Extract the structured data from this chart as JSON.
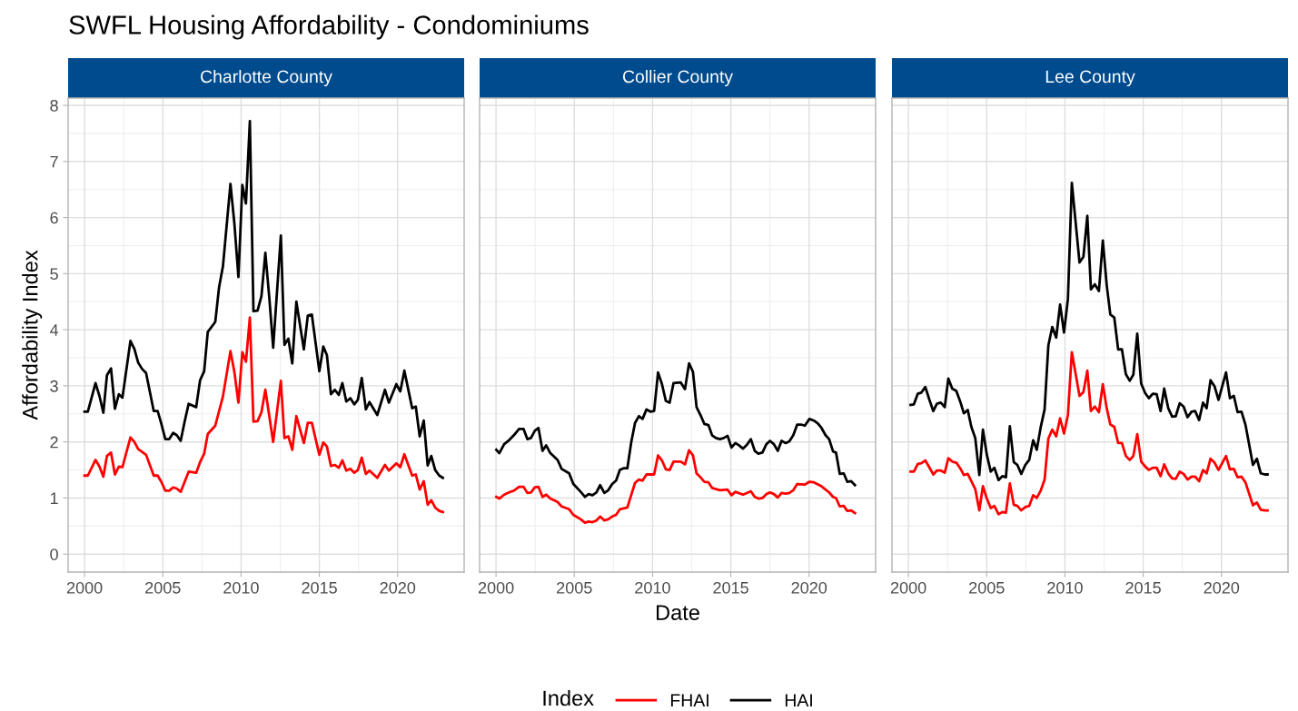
{
  "chart_data": [
    {
      "type": "line",
      "title": "SWFL Housing Affordability - Condominiums",
      "subtitle": "Charlotte County",
      "ylabel": "Affordability Index",
      "xlim": [
        1998.95,
        2024.25
      ],
      "ylim": [
        -0.32,
        8.13
      ],
      "xticks": [
        2000,
        2005,
        2010,
        2015,
        2020
      ],
      "yticks": [
        0,
        1,
        2,
        3,
        4,
        5,
        6,
        7,
        8
      ],
      "grid": true,
      "series": [
        {
          "color": "#ff0000",
          "x": [
            2000.0,
            2000.21,
            2000.7,
            2000.95,
            2001.2,
            2001.43,
            2001.69,
            2001.94,
            2002.19,
            2002.42,
            2002.93,
            2003.18,
            2003.43,
            2003.93,
            2004.42,
            2004.67,
            2004.9,
            2005.16,
            2005.41,
            2005.66,
            2005.89,
            2006.14,
            2006.65,
            2007.13,
            2007.38,
            2007.64,
            2007.87,
            2008.35,
            2008.84,
            2009.32,
            2009.57,
            2009.83,
            2010.08,
            2010.31,
            2010.56,
            2010.79,
            2011.05,
            2011.3,
            2011.55,
            2012.05,
            2012.54,
            2012.77,
            2013.02,
            2013.27,
            2013.53,
            2014.01,
            2014.26,
            2014.52,
            2015.0,
            2015.25,
            2015.48,
            2015.74,
            2015.99,
            2016.24,
            2016.47,
            2016.72,
            2016.98,
            2017.23,
            2017.46,
            2017.71,
            2017.97,
            2018.2,
            2018.7,
            2019.19,
            2019.44,
            2019.92,
            2020.17,
            2020.43,
            2020.93,
            2021.16,
            2021.41,
            2021.67,
            2021.92,
            2022.15,
            2022.4,
            2022.66,
            2022.89
          ],
          "values": [
            1.4,
            1.4,
            1.68,
            1.56,
            1.38,
            1.75,
            1.81,
            1.42,
            1.56,
            1.55,
            2.08,
            2.0,
            1.87,
            1.77,
            1.4,
            1.4,
            1.29,
            1.13,
            1.13,
            1.19,
            1.17,
            1.11,
            1.47,
            1.45,
            1.64,
            1.79,
            2.14,
            2.29,
            2.81,
            3.62,
            3.25,
            2.7,
            3.6,
            3.43,
            4.22,
            2.36,
            2.37,
            2.53,
            2.93,
            2.0,
            3.09,
            2.07,
            2.1,
            1.86,
            2.46,
            1.98,
            2.34,
            2.34,
            1.77,
            1.99,
            1.92,
            1.57,
            1.59,
            1.54,
            1.67,
            1.49,
            1.52,
            1.45,
            1.5,
            1.72,
            1.43,
            1.49,
            1.36,
            1.59,
            1.49,
            1.62,
            1.55,
            1.78,
            1.4,
            1.42,
            1.15,
            1.3,
            0.88,
            0.96,
            0.83,
            0.77,
            0.75
          ]
        },
        {
          "color": "#000000",
          "x": [
            2000.0,
            2000.21,
            2000.7,
            2000.95,
            2001.2,
            2001.43,
            2001.69,
            2001.94,
            2002.19,
            2002.42,
            2002.93,
            2003.18,
            2003.43,
            2003.68,
            2003.93,
            2004.19,
            2004.42,
            2004.67,
            2004.9,
            2005.16,
            2005.41,
            2005.66,
            2005.89,
            2006.14,
            2006.4,
            2006.65,
            2007.13,
            2007.38,
            2007.64,
            2007.87,
            2008.35,
            2008.59,
            2008.84,
            2009.32,
            2009.57,
            2009.83,
            2010.08,
            2010.31,
            2010.56,
            2010.79,
            2011.05,
            2011.3,
            2011.55,
            2011.8,
            2012.05,
            2012.54,
            2012.77,
            2013.02,
            2013.27,
            2013.53,
            2014.01,
            2014.26,
            2014.52,
            2015.0,
            2015.25,
            2015.48,
            2015.74,
            2015.99,
            2016.24,
            2016.47,
            2016.72,
            2016.98,
            2017.23,
            2017.46,
            2017.71,
            2017.97,
            2018.2,
            2018.7,
            2019.19,
            2019.44,
            2019.92,
            2020.17,
            2020.43,
            2020.93,
            2021.16,
            2021.41,
            2021.67,
            2021.92,
            2022.15,
            2022.4,
            2022.66,
            2022.89
          ],
          "values": [
            2.54,
            2.54,
            3.05,
            2.82,
            2.52,
            3.19,
            3.31,
            2.59,
            2.85,
            2.79,
            3.8,
            3.66,
            3.41,
            3.3,
            3.23,
            2.87,
            2.55,
            2.55,
            2.33,
            2.05,
            2.05,
            2.16,
            2.12,
            2.02,
            2.37,
            2.68,
            2.62,
            3.1,
            3.26,
            3.96,
            4.14,
            4.75,
            5.13,
            6.6,
            5.9,
            4.94,
            6.58,
            6.25,
            7.72,
            4.33,
            4.34,
            4.6,
            5.37,
            4.58,
            3.68,
            5.68,
            3.73,
            3.84,
            3.4,
            4.5,
            3.65,
            4.25,
            4.27,
            3.26,
            3.7,
            3.55,
            2.85,
            2.93,
            2.84,
            3.05,
            2.72,
            2.78,
            2.67,
            2.75,
            3.14,
            2.58,
            2.71,
            2.48,
            2.93,
            2.7,
            3.03,
            2.9,
            3.27,
            2.6,
            2.63,
            2.1,
            2.38,
            1.58,
            1.75,
            1.5,
            1.4,
            1.36
          ]
        }
      ]
    },
    {
      "type": "line",
      "subtitle": "Collier County",
      "xlabel": "Date",
      "legend_title": "Index",
      "legend": "bottom",
      "tick_labels": "x",
      "xlim": [
        1998.95,
        2024.25
      ],
      "ylim": [
        -0.32,
        8.13
      ],
      "xticks": [
        2000,
        2005,
        2010,
        2015,
        2020
      ],
      "yticks": [
        0,
        1,
        2,
        3,
        4,
        5,
        6,
        7,
        8
      ],
      "grid": true,
      "series": [
        {
          "name": "FHAI",
          "color": "#ff0000",
          "x": [
            2000.02,
            2000.21,
            2000.52,
            2000.83,
            2001.14,
            2001.47,
            2001.76,
            2002.0,
            2002.23,
            2002.48,
            2002.71,
            2002.97,
            2003.2,
            2003.47,
            2003.93,
            2004.19,
            2004.67,
            2004.94,
            2005.41,
            2005.68,
            2005.91,
            2006.16,
            2006.41,
            2006.65,
            2006.92,
            2007.17,
            2007.42,
            2007.67,
            2007.91,
            2008.39,
            2008.88,
            2009.13,
            2009.36,
            2009.61,
            2010.1,
            2010.35,
            2010.6,
            2010.85,
            2011.09,
            2011.34,
            2011.8,
            2012.07,
            2012.33,
            2012.58,
            2012.81,
            2013.06,
            2013.31,
            2013.57,
            2013.8,
            2014.3,
            2014.79,
            2015.04,
            2015.29,
            2015.78,
            2016.28,
            2016.53,
            2016.76,
            2017.02,
            2017.27,
            2017.5,
            2017.75,
            2018.0,
            2018.24,
            2018.51,
            2018.74,
            2018.99,
            2019.24,
            2019.73,
            2020.02,
            2020.31,
            2020.79,
            2021.05,
            2021.28,
            2021.53,
            2021.72,
            2021.96,
            2022.21,
            2022.44,
            2022.69,
            2022.93
          ],
          "values": [
            1.02,
            0.99,
            1.06,
            1.1,
            1.13,
            1.2,
            1.2,
            1.09,
            1.1,
            1.19,
            1.2,
            1.02,
            1.06,
            0.99,
            0.93,
            0.85,
            0.8,
            0.7,
            0.62,
            0.56,
            0.58,
            0.57,
            0.6,
            0.67,
            0.6,
            0.62,
            0.67,
            0.7,
            0.8,
            0.83,
            1.27,
            1.33,
            1.31,
            1.42,
            1.42,
            1.76,
            1.67,
            1.51,
            1.5,
            1.65,
            1.65,
            1.6,
            1.85,
            1.76,
            1.44,
            1.37,
            1.29,
            1.28,
            1.18,
            1.14,
            1.15,
            1.05,
            1.11,
            1.06,
            1.12,
            1.02,
            0.99,
            1.0,
            1.07,
            1.1,
            1.07,
            1.01,
            1.09,
            1.08,
            1.09,
            1.14,
            1.25,
            1.24,
            1.29,
            1.28,
            1.21,
            1.15,
            1.1,
            1.02,
            1.0,
            0.85,
            0.86,
            0.77,
            0.78,
            0.73
          ]
        },
        {
          "name": "HAI",
          "color": "#000000",
          "x": [
            2000.02,
            2000.21,
            2000.52,
            2000.83,
            2001.14,
            2001.47,
            2001.76,
            2002.0,
            2002.23,
            2002.48,
            2002.71,
            2002.97,
            2003.2,
            2003.47,
            2003.93,
            2004.19,
            2004.67,
            2004.94,
            2005.41,
            2005.68,
            2005.91,
            2006.16,
            2006.41,
            2006.65,
            2006.92,
            2007.17,
            2007.42,
            2007.67,
            2007.91,
            2008.14,
            2008.39,
            2008.64,
            2008.88,
            2009.13,
            2009.36,
            2009.61,
            2009.86,
            2010.1,
            2010.35,
            2010.6,
            2010.85,
            2011.09,
            2011.34,
            2011.8,
            2012.07,
            2012.33,
            2012.58,
            2012.81,
            2013.06,
            2013.31,
            2013.57,
            2013.8,
            2014.05,
            2014.3,
            2014.55,
            2014.79,
            2015.04,
            2015.29,
            2015.52,
            2015.78,
            2016.03,
            2016.28,
            2016.53,
            2016.76,
            2017.02,
            2017.27,
            2017.5,
            2017.75,
            2018.0,
            2018.24,
            2018.51,
            2018.74,
            2018.99,
            2019.24,
            2019.48,
            2019.73,
            2020.02,
            2020.31,
            2020.56,
            2020.79,
            2021.05,
            2021.28,
            2021.53,
            2021.72,
            2021.96,
            2022.21,
            2022.44,
            2022.69,
            2022.93
          ],
          "values": [
            1.86,
            1.8,
            1.96,
            2.03,
            2.12,
            2.23,
            2.23,
            2.05,
            2.07,
            2.2,
            2.25,
            1.84,
            1.94,
            1.8,
            1.68,
            1.52,
            1.44,
            1.25,
            1.11,
            1.02,
            1.07,
            1.05,
            1.1,
            1.23,
            1.09,
            1.14,
            1.25,
            1.31,
            1.5,
            1.53,
            1.53,
            2.0,
            2.34,
            2.46,
            2.41,
            2.58,
            2.54,
            2.55,
            3.24,
            3.03,
            2.73,
            2.7,
            3.05,
            3.06,
            2.94,
            3.4,
            3.25,
            2.62,
            2.48,
            2.32,
            2.3,
            2.12,
            2.07,
            2.05,
            2.07,
            2.11,
            1.9,
            1.98,
            1.94,
            1.88,
            1.95,
            2.05,
            1.84,
            1.79,
            1.81,
            1.96,
            2.02,
            1.96,
            1.84,
            2.02,
            1.98,
            2.01,
            2.12,
            2.31,
            2.31,
            2.29,
            2.41,
            2.38,
            2.33,
            2.25,
            2.12,
            2.05,
            1.83,
            1.81,
            1.43,
            1.44,
            1.29,
            1.3,
            1.23
          ]
        }
      ]
    },
    {
      "type": "line",
      "subtitle": "Lee County",
      "tick_labels": "x",
      "xlim": [
        1998.95,
        2024.25
      ],
      "ylim": [
        -0.32,
        8.13
      ],
      "xticks": [
        2000,
        2005,
        2010,
        2015,
        2020
      ],
      "yticks": [
        0,
        1,
        2,
        3,
        4,
        5,
        6,
        7,
        8
      ],
      "grid": true,
      "x": [
        2000.14,
        2000.35,
        2000.6,
        2000.83,
        2001.08,
        2001.33,
        2001.59,
        2001.82,
        2002.07,
        2002.32,
        2002.55,
        2002.8,
        2003.06,
        2003.31,
        2003.54,
        2003.79,
        2004.02,
        2004.27,
        2004.53,
        2004.76,
        2005.01,
        2005.26,
        2005.49,
        2005.76,
        2006.0,
        2006.23,
        2006.48,
        2006.73,
        2006.96,
        2007.21,
        2007.47,
        2007.72,
        2007.97,
        2008.2,
        2008.45,
        2008.7,
        2008.94,
        2009.19,
        2009.44,
        2009.69,
        2009.94,
        2010.19,
        2010.44,
        2010.93,
        2011.18,
        2011.43,
        2011.66,
        2011.91,
        2012.17,
        2012.42,
        2012.67,
        2012.9,
        2013.15,
        2013.4,
        2013.64,
        2013.89,
        2014.14,
        2014.37,
        2014.62,
        2014.87,
        2015.13,
        2015.36,
        2015.61,
        2015.86,
        2016.11,
        2016.34,
        2016.6,
        2016.85,
        2017.08,
        2017.33,
        2017.58,
        2017.83,
        2018.09,
        2018.32,
        2018.57,
        2018.82,
        2019.05,
        2019.3,
        2019.56,
        2019.81,
        2020.29,
        2020.54,
        2020.79,
        2021.03,
        2021.28,
        2021.53,
        2022.01,
        2022.26,
        2022.51,
        2022.77,
        2022.94
      ],
      "series": [
        {
          "color": "#ff0000",
          "values": [
            1.47,
            1.47,
            1.61,
            1.62,
            1.67,
            1.55,
            1.42,
            1.49,
            1.49,
            1.45,
            1.71,
            1.65,
            1.63,
            1.53,
            1.41,
            1.43,
            1.3,
            1.16,
            0.78,
            1.21,
            0.99,
            0.82,
            0.86,
            0.71,
            0.75,
            0.74,
            1.26,
            0.88,
            0.86,
            0.78,
            0.84,
            0.86,
            1.05,
            1.0,
            1.13,
            1.33,
            2.06,
            2.22,
            2.1,
            2.42,
            2.15,
            2.48,
            3.6,
            2.82,
            2.89,
            3.27,
            2.55,
            2.63,
            2.53,
            3.03,
            2.6,
            2.31,
            2.27,
            1.98,
            1.98,
            1.75,
            1.68,
            1.75,
            2.14,
            1.65,
            1.56,
            1.5,
            1.54,
            1.54,
            1.39,
            1.6,
            1.44,
            1.35,
            1.34,
            1.47,
            1.43,
            1.33,
            1.38,
            1.38,
            1.3,
            1.5,
            1.44,
            1.7,
            1.63,
            1.5,
            1.75,
            1.51,
            1.52,
            1.37,
            1.38,
            1.28,
            0.87,
            0.92,
            0.79,
            0.78,
            0.78
          ]
        },
        {
          "color": "#000000",
          "values": [
            2.66,
            2.67,
            2.86,
            2.88,
            2.98,
            2.76,
            2.55,
            2.68,
            2.7,
            2.62,
            3.13,
            2.95,
            2.91,
            2.72,
            2.51,
            2.57,
            2.27,
            2.07,
            1.41,
            2.22,
            1.77,
            1.47,
            1.54,
            1.32,
            1.39,
            1.37,
            2.28,
            1.64,
            1.59,
            1.43,
            1.59,
            1.68,
            2.03,
            1.86,
            2.26,
            2.58,
            3.72,
            4.05,
            3.86,
            4.45,
            3.95,
            4.55,
            6.62,
            5.2,
            5.3,
            6.03,
            4.72,
            4.81,
            4.69,
            5.59,
            4.79,
            4.27,
            4.22,
            3.65,
            3.65,
            3.21,
            3.09,
            3.2,
            3.93,
            3.04,
            2.87,
            2.78,
            2.86,
            2.85,
            2.55,
            2.95,
            2.6,
            2.45,
            2.46,
            2.69,
            2.63,
            2.44,
            2.54,
            2.55,
            2.39,
            2.7,
            2.6,
            3.1,
            2.99,
            2.75,
            3.24,
            2.78,
            2.82,
            2.53,
            2.54,
            2.31,
            1.59,
            1.7,
            1.44,
            1.42,
            1.42
          ]
        }
      ]
    }
  ]
}
